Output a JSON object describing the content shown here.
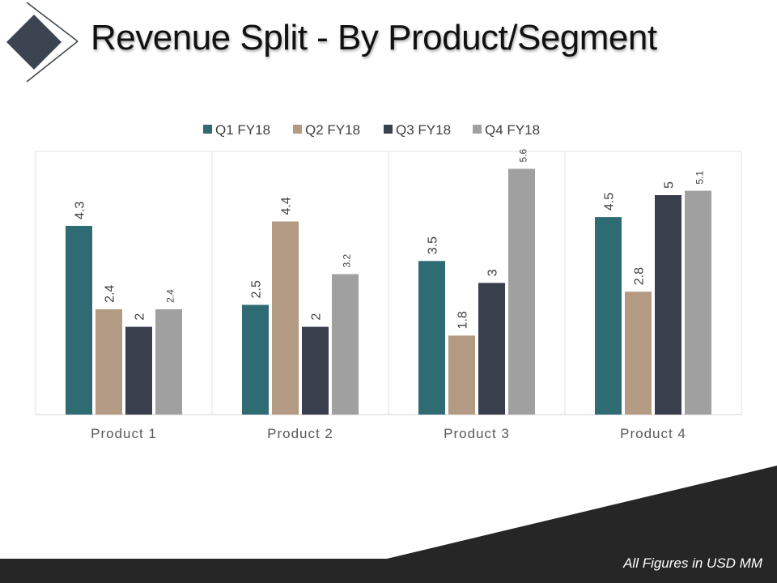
{
  "slide": {
    "title": "Revenue Split - By Product/Segment",
    "footnote": "All Figures in USD MM"
  },
  "colors": {
    "q1": "#2e6b72",
    "q2": "#b39a83",
    "q3": "#3a3f4e",
    "q4": "#a0a0a0",
    "logo": "#3d4451",
    "footer": "#262626"
  },
  "chart_data": {
    "type": "bar",
    "title": "",
    "xlabel": "",
    "ylabel": "",
    "categories": [
      "Product 1",
      "Product 2",
      "Product 3",
      "Product 4"
    ],
    "series": [
      {
        "name": "Q1 FY18",
        "values": [
          4.3,
          2.5,
          3.5,
          4.5
        ],
        "color": "#2e6b72"
      },
      {
        "name": "Q2 FY18",
        "values": [
          2.4,
          4.4,
          1.8,
          2.8
        ],
        "color": "#b39a83"
      },
      {
        "name": "Q3 FY18",
        "values": [
          2,
          2,
          3,
          5
        ],
        "color": "#3a3f4e"
      },
      {
        "name": "Q4 FY18",
        "values": [
          2.4,
          3.2,
          5.6,
          5.1
        ],
        "color": "#a0a0a0"
      }
    ],
    "ylim": [
      0,
      6
    ],
    "grid": false,
    "legend": "top",
    "data_labels": true
  }
}
